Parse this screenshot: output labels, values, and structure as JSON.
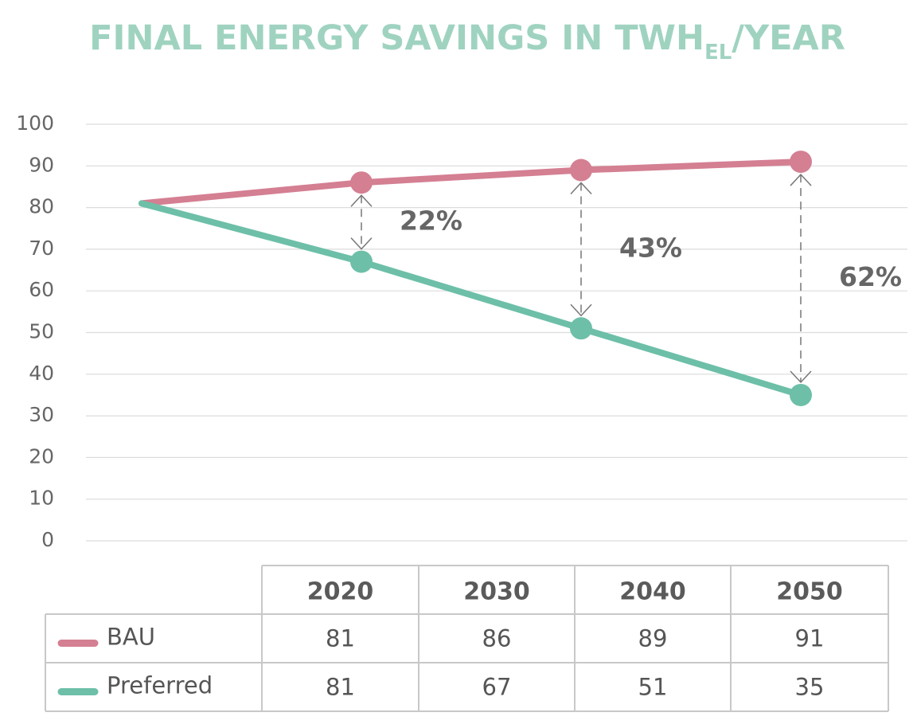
{
  "chart_data": {
    "type": "line",
    "title": "FINAL ENERGY SAVINGS IN TWH",
    "title_subscript": "EL",
    "title_suffix": "/YEAR",
    "categories": [
      "2020",
      "2030",
      "2040",
      "2050"
    ],
    "series": [
      {
        "name": "BAU",
        "color": "#d47f92",
        "values": [
          81,
          86,
          89,
          91
        ]
      },
      {
        "name": "Preferred",
        "color": "#6dbfa8",
        "values": [
          81,
          67,
          51,
          35
        ]
      }
    ],
    "annotations": [
      "22%",
      "43%",
      "62%"
    ],
    "ylim": [
      0,
      100
    ],
    "yticks": [
      0,
      10,
      20,
      30,
      40,
      50,
      60,
      70,
      80,
      90,
      100
    ],
    "grid": true
  }
}
